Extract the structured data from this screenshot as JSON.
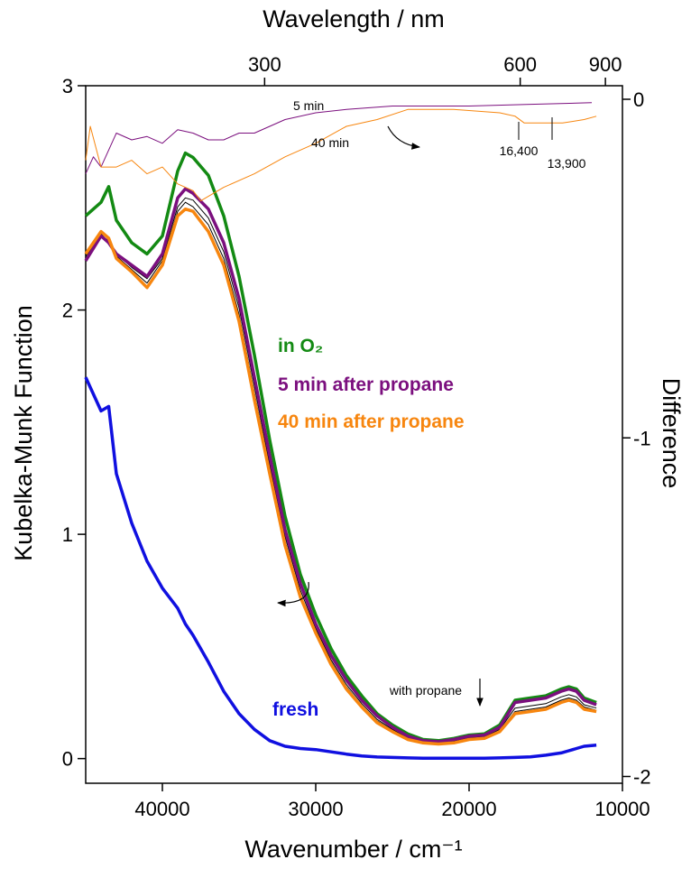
{
  "chart_data": {
    "type": "line",
    "title_top_axis": "Wavelength / nm",
    "x_label": "Wavenumber / cm⁻¹",
    "y_label": "Kubelka-Munk Function",
    "y2_label": "Difference",
    "xlim": [
      45000,
      10000
    ],
    "xticks": [
      40000,
      30000,
      20000,
      10000
    ],
    "ylim": [
      -0.11,
      3
    ],
    "yticks": [
      0,
      1,
      2,
      3
    ],
    "y2lim": [
      -2.02,
      0.04
    ],
    "y2ticks": [
      -2,
      -1,
      0
    ],
    "top_ticks": [
      300,
      600,
      900
    ],
    "x": [
      45000,
      44000,
      43500,
      43000,
      42000,
      41000,
      40000,
      39000,
      38500,
      38000,
      37000,
      36000,
      35000,
      34000,
      33000,
      32000,
      31000,
      30000,
      29000,
      28000,
      27000,
      26000,
      25000,
      24000,
      23000,
      22000,
      21000,
      20000,
      19000,
      18000,
      17000,
      16000,
      15000,
      14000,
      13500,
      13000,
      12500,
      11700
    ],
    "series": [
      {
        "color": "#000000",
        "values": [
          2.24,
          2.33,
          2.31,
          2.25,
          2.19,
          2.14,
          2.23,
          2.46,
          2.5,
          2.49,
          2.41,
          2.26,
          2.01,
          1.66,
          1.31,
          0.99,
          0.75,
          0.58,
          0.44,
          0.33,
          0.245,
          0.175,
          0.13,
          0.092,
          0.075,
          0.07,
          0.078,
          0.093,
          0.098,
          0.13,
          0.225,
          0.235,
          0.245,
          0.275,
          0.285,
          0.275,
          0.24,
          0.225
        ]
      },
      {
        "color": "#000000",
        "values": [
          2.23,
          2.34,
          2.3,
          2.24,
          2.18,
          2.12,
          2.22,
          2.44,
          2.48,
          2.46,
          2.38,
          2.23,
          1.98,
          1.63,
          1.29,
          0.97,
          0.73,
          0.57,
          0.43,
          0.32,
          0.235,
          0.168,
          0.125,
          0.088,
          0.072,
          0.068,
          0.074,
          0.089,
          0.094,
          0.125,
          0.21,
          0.22,
          0.23,
          0.26,
          0.27,
          0.26,
          0.23,
          0.215
        ]
      },
      {
        "name": "in O₂",
        "color": "#138a13",
        "values": [
          2.42,
          2.48,
          2.55,
          2.4,
          2.3,
          2.25,
          2.33,
          2.62,
          2.7,
          2.68,
          2.6,
          2.42,
          2.15,
          1.8,
          1.42,
          1.08,
          0.82,
          0.64,
          0.49,
          0.37,
          0.28,
          0.2,
          0.15,
          0.11,
          0.085,
          0.08,
          0.09,
          0.105,
          0.11,
          0.15,
          0.26,
          0.27,
          0.28,
          0.31,
          0.32,
          0.31,
          0.27,
          0.25
        ]
      },
      {
        "name": "5 min after propane",
        "color": "#7b0f7e",
        "values": [
          2.22,
          2.33,
          2.3,
          2.25,
          2.2,
          2.15,
          2.25,
          2.5,
          2.54,
          2.52,
          2.45,
          2.3,
          2.05,
          1.7,
          1.35,
          1.02,
          0.78,
          0.6,
          0.46,
          0.35,
          0.26,
          0.19,
          0.14,
          0.1,
          0.08,
          0.075,
          0.085,
          0.1,
          0.105,
          0.14,
          0.25,
          0.26,
          0.27,
          0.3,
          0.31,
          0.3,
          0.26,
          0.24
        ]
      },
      {
        "name": "40 min after propane",
        "color": "#f7860f",
        "values": [
          2.25,
          2.35,
          2.32,
          2.23,
          2.17,
          2.1,
          2.2,
          2.42,
          2.45,
          2.44,
          2.35,
          2.2,
          1.95,
          1.6,
          1.27,
          0.95,
          0.72,
          0.56,
          0.42,
          0.31,
          0.23,
          0.16,
          0.12,
          0.085,
          0.07,
          0.065,
          0.07,
          0.085,
          0.09,
          0.12,
          0.2,
          0.21,
          0.22,
          0.25,
          0.26,
          0.25,
          0.22,
          0.21
        ]
      },
      {
        "name": "fresh",
        "color": "#1010e0",
        "values": [
          1.7,
          1.55,
          1.57,
          1.27,
          1.05,
          0.88,
          0.76,
          0.67,
          0.6,
          0.55,
          0.43,
          0.3,
          0.2,
          0.13,
          0.08,
          0.055,
          0.045,
          0.04,
          0.03,
          0.02,
          0.012,
          0.007,
          0.005,
          0.003,
          0.002,
          0.002,
          0.002,
          0.002,
          0.002,
          0.003,
          0.005,
          0.008,
          0.015,
          0.025,
          0.035,
          0.045,
          0.055,
          0.06
        ]
      },
      {
        "name": "5 min",
        "color": "#7b0f7e",
        "axis": "y2",
        "x": [
          45000,
          44500,
          44000,
          43000,
          42000,
          41000,
          40000,
          39000,
          38000,
          37000,
          36000,
          35000,
          34000,
          33000,
          32000,
          30000,
          28000,
          25000,
          20000,
          16000,
          12000
        ],
        "values": [
          -0.22,
          -0.17,
          -0.2,
          -0.1,
          -0.12,
          -0.11,
          -0.13,
          -0.09,
          -0.1,
          -0.12,
          -0.12,
          -0.1,
          -0.1,
          -0.08,
          -0.06,
          -0.04,
          -0.03,
          -0.02,
          -0.02,
          -0.015,
          -0.01
        ]
      },
      {
        "name": "40 min",
        "color": "#f7860f",
        "axis": "y2",
        "x": [
          45000,
          44700,
          44000,
          43000,
          42000,
          41000,
          40000,
          39000,
          38000,
          37500,
          36000,
          34000,
          32000,
          30000,
          28000,
          26000,
          24000,
          21000,
          18000,
          17000,
          16400,
          15000,
          13900,
          12500,
          11700
        ],
        "values": [
          -0.18,
          -0.08,
          -0.2,
          -0.2,
          -0.18,
          -0.22,
          -0.2,
          -0.25,
          -0.27,
          -0.3,
          -0.26,
          -0.22,
          -0.17,
          -0.13,
          -0.08,
          -0.06,
          -0.03,
          -0.03,
          -0.04,
          -0.05,
          -0.07,
          -0.07,
          -0.07,
          -0.06,
          -0.05
        ]
      }
    ],
    "annotations": [
      "16,400",
      "13,900",
      "with propane"
    ]
  }
}
